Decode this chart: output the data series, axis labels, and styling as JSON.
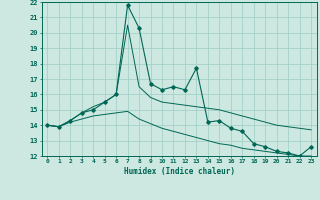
{
  "xlabel": "Humidex (Indice chaleur)",
  "ylabel": "",
  "bg_color": "#cce8e0",
  "grid_color": "#9ecec4",
  "line_color": "#006655",
  "x_data": [
    0,
    1,
    2,
    3,
    4,
    5,
    6,
    7,
    8,
    9,
    10,
    11,
    12,
    13,
    14,
    15,
    16,
    17,
    18,
    19,
    20,
    21,
    22,
    23
  ],
  "main_line": [
    14.0,
    13.9,
    14.3,
    14.8,
    15.0,
    15.5,
    16.0,
    21.8,
    20.3,
    16.7,
    16.3,
    16.5,
    16.3,
    17.7,
    14.2,
    14.3,
    13.8,
    13.6,
    12.8,
    12.6,
    12.3,
    12.2,
    12.0,
    12.6
  ],
  "upper_line": [
    14.0,
    13.9,
    14.3,
    14.8,
    15.2,
    15.5,
    16.0,
    20.5,
    16.5,
    15.8,
    15.5,
    15.4,
    15.3,
    15.2,
    15.1,
    15.0,
    14.8,
    14.6,
    14.4,
    14.2,
    14.0,
    13.9,
    13.8,
    13.7
  ],
  "lower_line": [
    14.0,
    13.9,
    14.2,
    14.4,
    14.6,
    14.7,
    14.8,
    14.9,
    14.4,
    14.1,
    13.8,
    13.6,
    13.4,
    13.2,
    13.0,
    12.8,
    12.7,
    12.5,
    12.4,
    12.3,
    12.2,
    12.1,
    12.0,
    12.0
  ],
  "ylim": [
    12,
    22
  ],
  "xlim": [
    -0.5,
    23.5
  ],
  "yticks": [
    12,
    13,
    14,
    15,
    16,
    17,
    18,
    19,
    20,
    21,
    22
  ],
  "xticks": [
    0,
    1,
    2,
    3,
    4,
    5,
    6,
    7,
    8,
    9,
    10,
    11,
    12,
    13,
    14,
    15,
    16,
    17,
    18,
    19,
    20,
    21,
    22,
    23
  ]
}
